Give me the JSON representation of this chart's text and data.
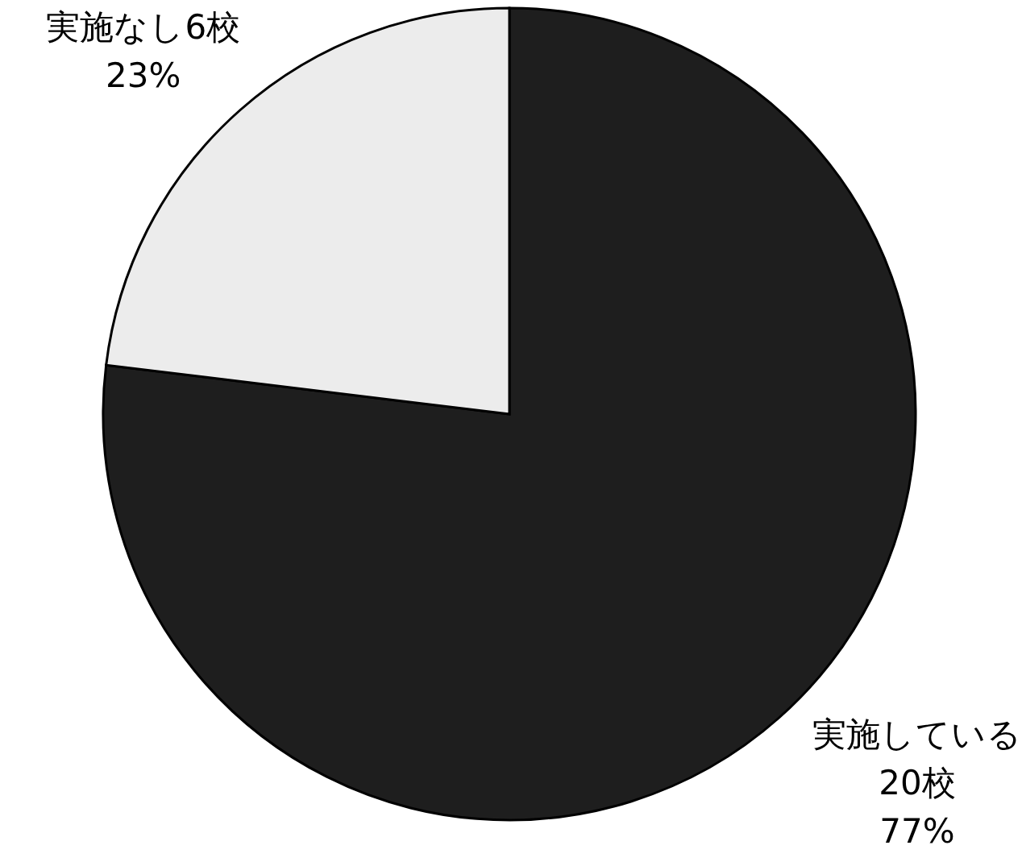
{
  "chart_data": {
    "type": "pie",
    "categories": [
      "実施している",
      "実施なし"
    ],
    "values": [
      20,
      6
    ],
    "value_labels": [
      "20校\n77%",
      "6校\n23%"
    ],
    "colors": [
      "#1e1e1e",
      "#ececec"
    ]
  }
}
